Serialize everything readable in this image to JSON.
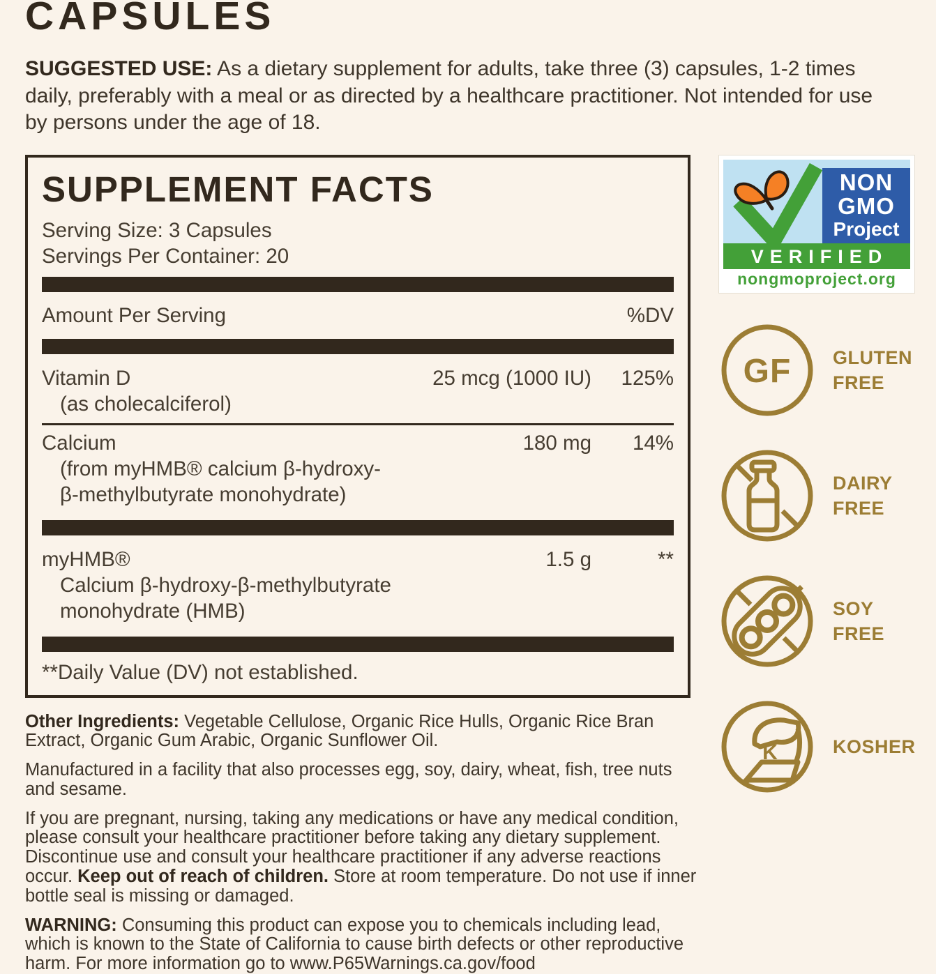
{
  "page_title": "CAPSULES",
  "colors": {
    "background_cream": "#FAF3EA",
    "ink_dark_brown": "#32281D",
    "body_text": "#463D31",
    "gold_accent": "#9C7D34",
    "nongmo_blue": "#2E5CA8",
    "nongmo_light_blue": "#BFE1F2",
    "nongmo_green": "#43A038",
    "butterfly_orange": "#F58025"
  },
  "suggested_use": {
    "label": "SUGGESTED USE:",
    "text": " As a dietary supplement for adults, take three (3) capsules, 1-2 times daily, preferably with a meal or as directed by a healthcare practitioner. Not intended for use by persons under the age of 18."
  },
  "supplement_facts": {
    "title": "SUPPLEMENT FACTS",
    "serving_size": "Serving Size: 3 Capsules",
    "servings_per_container": "Servings Per Container: 20",
    "header": {
      "amount": "Amount Per Serving",
      "dv": "%DV"
    },
    "rows": [
      {
        "name": "Vitamin D",
        "sub": [
          "(as cholecalciferol)"
        ],
        "amount": "25 mcg (1000 IU)",
        "dv": "125%"
      },
      {
        "name": "Calcium",
        "sub": [
          "(from myHMB® calcium β-hydroxy-",
          "β-methylbutyrate monohydrate)"
        ],
        "amount": "180 mg",
        "dv": "14%"
      },
      {
        "name": "myHMB®",
        "sub": [
          "Calcium β-hydroxy-β-methylbutyrate",
          "monohydrate (HMB)"
        ],
        "amount": "1.5 g",
        "dv": "**"
      }
    ],
    "footnote": "**Daily Value (DV) not established."
  },
  "non_gmo_badge": {
    "word1": "NON",
    "word2": "GMO",
    "word3": "Project",
    "verified": "VERIFIED",
    "site": "nongmoproject.org"
  },
  "badge_items": [
    {
      "name": "gluten-free",
      "circle_text": "GF",
      "lines": [
        "GLUTEN",
        "FREE"
      ]
    },
    {
      "name": "dairy-free",
      "lines": [
        "DAIRY",
        "FREE"
      ]
    },
    {
      "name": "soy-free",
      "lines": [
        "SOY",
        "FREE"
      ]
    },
    {
      "name": "kosher",
      "circle_text": "K",
      "lines": [
        "KOSHER"
      ]
    }
  ],
  "paragraphs": [
    {
      "segments": [
        {
          "text": "Other Ingredients: ",
          "bold": true
        },
        {
          "text": "Vegetable Cellulose, Organic Rice Hulls, Organic Rice Bran Extract, Organic Gum Arabic, Organic Sunflower Oil.",
          "bold": false
        }
      ]
    },
    {
      "segments": [
        {
          "text": "Manufactured in a facility that also processes egg, soy, dairy, wheat, fish, tree nuts and sesame.",
          "bold": false
        }
      ]
    },
    {
      "segments": [
        {
          "text": "If you are pregnant, nursing, taking any medications or have any medical condition, please consult your healthcare practitioner before taking any dietary supplement. Discontinue use and consult your healthcare practitioner if any adverse reactions occur. ",
          "bold": false
        },
        {
          "text": "Keep out of reach of children. ",
          "bold": true
        },
        {
          "text": "Store at room temperature. Do not use if inner bottle seal is missing or damaged.",
          "bold": false
        }
      ]
    },
    {
      "segments": [
        {
          "text": "WARNING: ",
          "bold": true
        },
        {
          "text": "Consuming this product can expose you to chemicals including lead, which is known to the State of California to cause birth defects or other reproductive harm. For more information go to www.P65Warnings.ca.gov/food",
          "bold": false
        }
      ]
    }
  ]
}
